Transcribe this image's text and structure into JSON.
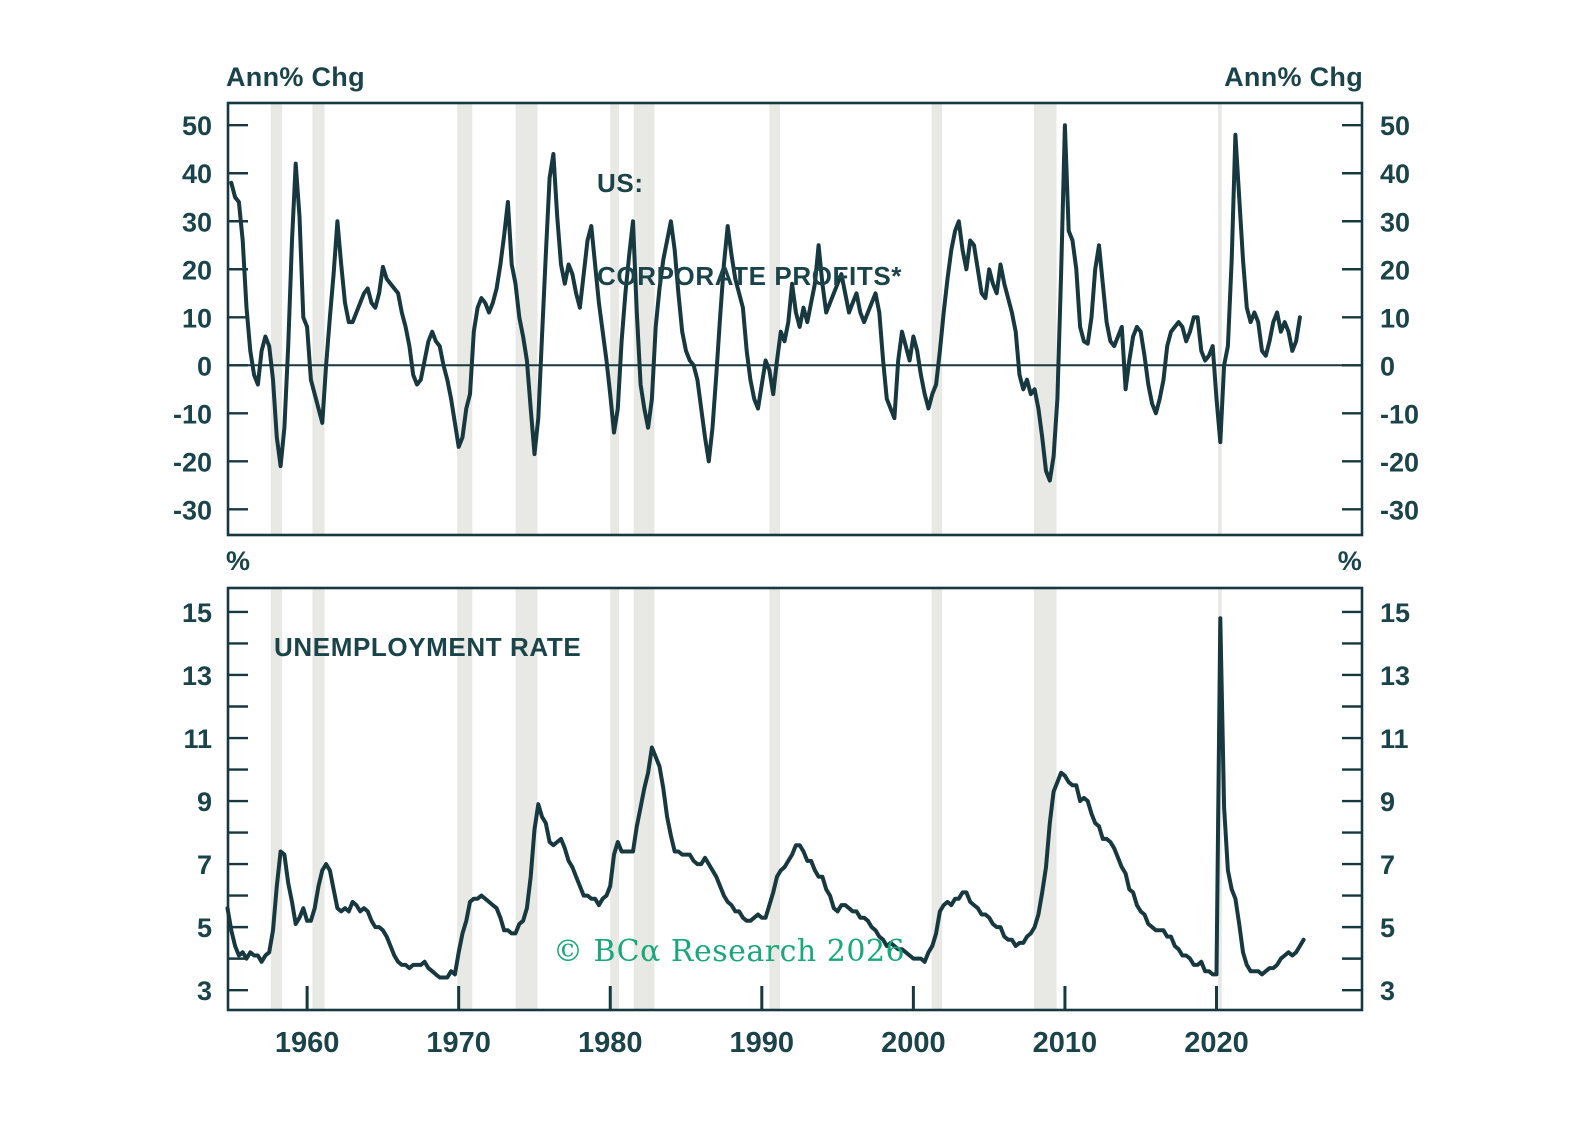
{
  "copyright": "© BCα Research 2026",
  "colors": {
    "ink": "#16383e",
    "text": "#1a4449",
    "recession_band": "#e8e8e4",
    "copyright_green": "#1aa87b",
    "background": "#ffffff"
  },
  "top_chart": {
    "title_line1": "US:",
    "title_line2": "CORPORATE PROFITS*",
    "unit_left": "Ann% Chg",
    "unit_right": "Ann% Chg"
  },
  "bottom_chart": {
    "title": "UNEMPLOYMENT RATE",
    "unit_left": "%",
    "unit_right": "%"
  },
  "recessions": [
    [
      1957.6,
      1958.35
    ],
    [
      1960.35,
      1961.15
    ],
    [
      1969.9,
      1970.9
    ],
    [
      1973.75,
      1975.2
    ],
    [
      1980.0,
      1980.58
    ],
    [
      1981.55,
      1982.92
    ],
    [
      1990.5,
      1991.2
    ],
    [
      2001.2,
      2001.9
    ],
    [
      2007.95,
      2009.45
    ],
    [
      2020.1,
      2020.35
    ]
  ],
  "chart_data": [
    {
      "type": "line",
      "title": "US: CORPORATE PROFITS*",
      "ylabel": "Ann% Chg",
      "xlim": [
        1954.78,
        2029.6
      ],
      "ylim": [
        -35.35,
        54.63
      ],
      "y_ticks": [
        50,
        40,
        30,
        20,
        10,
        0,
        -10,
        -20,
        -30
      ],
      "x_ticks": [
        1960,
        1970,
        1980,
        1990,
        2000,
        2010,
        2020
      ],
      "zero_line": true,
      "grid": false,
      "legend": "none",
      "series": [
        {
          "name": "US Corporate Profits, Annual % Change (quarterly)",
          "x_start": 1955.0,
          "x_step": 0.25,
          "values": [
            38,
            35,
            34,
            26,
            12,
            3,
            -2,
            -4,
            3,
            6,
            4,
            -3,
            -15,
            -21,
            -13,
            4,
            26,
            42,
            31,
            10,
            8,
            -3,
            -6,
            -9,
            -12,
            0,
            10,
            19,
            30,
            21,
            13,
            9,
            9,
            11,
            13,
            15,
            16,
            13,
            12,
            15,
            20.5,
            18,
            17,
            16,
            15,
            11,
            8,
            4,
            -2,
            -4,
            -3,
            1,
            5,
            7,
            5,
            4,
            0,
            -3,
            -7,
            -12,
            -17,
            -15,
            -9,
            -6,
            7,
            12,
            14,
            13,
            11,
            13,
            16,
            21,
            27,
            34,
            21,
            17,
            10,
            6,
            1,
            -9,
            -18.5,
            -11,
            6,
            23,
            39,
            44,
            31,
            21,
            17,
            21,
            19,
            15,
            12,
            19,
            26,
            29,
            21,
            13,
            7,
            1,
            -6,
            -14,
            -9,
            5,
            15,
            23,
            30,
            11,
            -4,
            -9,
            -13,
            -7,
            8,
            16,
            22,
            26,
            30,
            24,
            15,
            7,
            3,
            1,
            0,
            -3,
            -9,
            -15,
            -20,
            -13,
            -2,
            10,
            21,
            29,
            23,
            18,
            15,
            12,
            3,
            -3,
            -7,
            -9,
            -4,
            1,
            -1,
            -6,
            1,
            7,
            5,
            9,
            17,
            11,
            8,
            12,
            9,
            13,
            17,
            25,
            17,
            11,
            13,
            15,
            17,
            19,
            15,
            11,
            13,
            15,
            11,
            9,
            11,
            13,
            15,
            11,
            1,
            -7,
            -9,
            -11,
            1,
            7,
            4,
            1,
            6,
            3,
            -2,
            -6,
            -9,
            -6,
            -4,
            3,
            11,
            18,
            24,
            28,
            30,
            24,
            20,
            26,
            25,
            20,
            15,
            14,
            20,
            17,
            15,
            21,
            17,
            14,
            11,
            7,
            -2,
            -5,
            -3,
            -6,
            -5,
            -9,
            -15,
            -22,
            -24,
            -19,
            -7,
            19,
            50,
            28,
            26,
            20,
            8,
            5,
            4.5,
            10,
            20,
            25,
            17,
            9,
            5,
            4,
            6,
            8,
            -5,
            1,
            6,
            8,
            7,
            2,
            -4,
            -8,
            -10,
            -7,
            -3,
            4,
            7,
            8,
            9,
            8,
            5,
            7,
            10,
            10,
            3,
            1,
            2,
            4,
            -7,
            -16,
            0,
            4,
            22,
            48,
            35,
            22,
            12,
            9,
            11,
            9,
            3,
            2,
            5,
            9,
            11,
            7,
            9,
            7,
            3,
            5,
            10
          ]
        }
      ]
    },
    {
      "type": "line",
      "title": "UNEMPLOYMENT RATE",
      "ylabel": "%",
      "xlim": [
        1954.78,
        2029.6
      ],
      "ylim": [
        2.37,
        15.76
      ],
      "y_ticks": [
        15,
        13,
        11,
        9,
        7,
        5,
        3
      ],
      "y_minor_ticks": [
        3,
        4,
        5,
        6,
        7,
        8,
        9,
        10,
        11,
        12,
        13,
        14,
        15
      ],
      "x_ticks": [
        1960,
        1970,
        1980,
        1990,
        2000,
        2010,
        2020
      ],
      "zero_line": false,
      "grid": false,
      "legend": "none",
      "series": [
        {
          "name": "US Unemployment Rate, % (quarterly)",
          "x_start": 1954.75,
          "x_step": 0.25,
          "values": [
            5.6,
            4.9,
            4.4,
            4.1,
            4.2,
            4.0,
            4.2,
            4.1,
            4.1,
            3.9,
            4.1,
            4.2,
            4.9,
            6.3,
            7.4,
            7.3,
            6.4,
            5.8,
            5.1,
            5.3,
            5.6,
            5.2,
            5.2,
            5.6,
            6.3,
            6.8,
            7.0,
            6.8,
            6.2,
            5.6,
            5.5,
            5.6,
            5.5,
            5.8,
            5.7,
            5.5,
            5.6,
            5.5,
            5.2,
            5.0,
            5.0,
            4.9,
            4.7,
            4.4,
            4.1,
            3.9,
            3.8,
            3.8,
            3.7,
            3.8,
            3.8,
            3.8,
            3.9,
            3.7,
            3.6,
            3.5,
            3.4,
            3.4,
            3.4,
            3.6,
            3.5,
            4.2,
            4.8,
            5.2,
            5.8,
            5.9,
            5.9,
            6.0,
            5.9,
            5.8,
            5.7,
            5.6,
            5.3,
            4.9,
            4.9,
            4.8,
            4.8,
            5.1,
            5.2,
            5.6,
            6.6,
            8.1,
            8.9,
            8.5,
            8.3,
            7.7,
            7.6,
            7.7,
            7.8,
            7.5,
            7.1,
            6.9,
            6.6,
            6.3,
            6.0,
            6.0,
            5.9,
            5.9,
            5.7,
            5.9,
            6.0,
            6.3,
            7.3,
            7.7,
            7.4,
            7.4,
            7.4,
            7.4,
            8.2,
            8.8,
            9.4,
            9.9,
            10.7,
            10.4,
            10.1,
            9.4,
            8.5,
            7.9,
            7.4,
            7.4,
            7.3,
            7.3,
            7.3,
            7.1,
            7.0,
            7.0,
            7.2,
            7.0,
            6.8,
            6.6,
            6.3,
            6.0,
            5.8,
            5.7,
            5.5,
            5.5,
            5.3,
            5.2,
            5.2,
            5.3,
            5.4,
            5.3,
            5.3,
            5.7,
            6.1,
            6.6,
            6.8,
            6.9,
            7.1,
            7.3,
            7.6,
            7.6,
            7.4,
            7.1,
            7.1,
            6.8,
            6.6,
            6.6,
            6.2,
            6.0,
            5.6,
            5.5,
            5.7,
            5.7,
            5.6,
            5.5,
            5.5,
            5.3,
            5.3,
            5.2,
            5.0,
            4.9,
            4.7,
            4.6,
            4.4,
            4.5,
            4.4,
            4.3,
            4.3,
            4.2,
            4.1,
            4.0,
            4.0,
            4.0,
            3.9,
            4.2,
            4.4,
            4.8,
            5.5,
            5.7,
            5.8,
            5.7,
            5.9,
            5.9,
            6.1,
            6.1,
            5.8,
            5.7,
            5.6,
            5.4,
            5.4,
            5.3,
            5.1,
            5.0,
            5.0,
            4.7,
            4.6,
            4.6,
            4.4,
            4.5,
            4.5,
            4.7,
            4.8,
            5.0,
            5.4,
            6.1,
            6.9,
            8.3,
            9.3,
            9.6,
            9.9,
            9.8,
            9.6,
            9.5,
            9.5,
            9.0,
            9.1,
            9.0,
            8.6,
            8.3,
            8.2,
            7.8,
            7.8,
            7.7,
            7.5,
            7.2,
            6.9,
            6.7,
            6.2,
            6.1,
            5.7,
            5.5,
            5.4,
            5.1,
            5.0,
            4.9,
            4.9,
            4.9,
            4.7,
            4.7,
            4.4,
            4.3,
            4.1,
            4.1,
            4.0,
            3.8,
            3.8,
            3.9,
            3.6,
            3.6,
            3.5,
            3.5,
            14.8,
            8.8,
            6.8,
            6.2,
            5.9,
            5.1,
            4.2,
            3.8,
            3.6,
            3.6,
            3.6,
            3.5,
            3.6,
            3.7,
            3.7,
            3.8,
            4.0,
            4.1,
            4.2,
            4.1,
            4.2,
            4.4,
            4.6
          ]
        }
      ]
    }
  ]
}
